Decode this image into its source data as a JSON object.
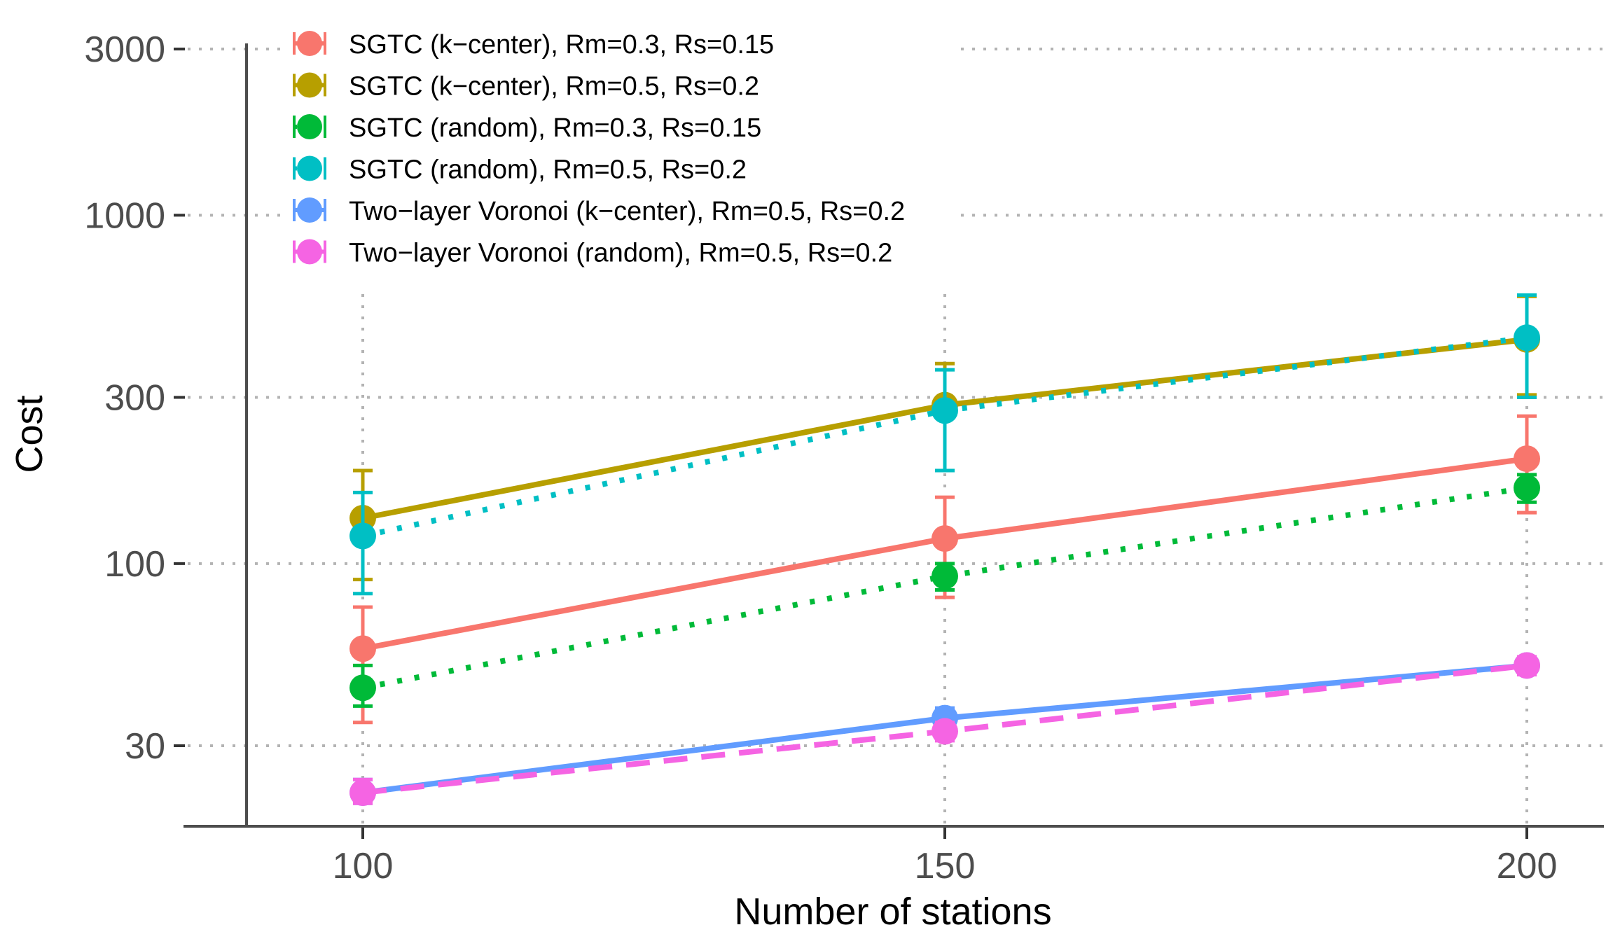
{
  "chart_data": {
    "type": "line",
    "title": "",
    "xlabel": "Number of stations",
    "ylabel": "Cost",
    "y_scale": "log10",
    "ylim": [
      20,
      3000
    ],
    "xlim": [
      85,
      206
    ],
    "x": [
      100,
      150,
      200
    ],
    "x_ticks": [
      100,
      150,
      200
    ],
    "x_tick_labels": [
      "100",
      "150",
      "200"
    ],
    "y_ticks": [
      30,
      100,
      300,
      1000,
      3000
    ],
    "y_tick_labels": [
      "30",
      "100",
      "300",
      "1000",
      "3000"
    ],
    "grid": true,
    "legend_position": "top-left",
    "series": [
      {
        "name": "SGTC (k−center), Rm=0.3, Rs=0.15",
        "color": "#F8766D",
        "dash": "solid",
        "values": [
          57,
          118,
          200
        ],
        "err_low": [
          35,
          80,
          140
        ],
        "err_high": [
          75,
          155,
          265
        ]
      },
      {
        "name": "SGTC (k−center), Rm=0.5, Rs=0.2",
        "color": "#B79F00",
        "dash": "solid",
        "values": [
          135,
          285,
          440
        ],
        "err_low": [
          90,
          185,
          305
        ],
        "err_high": [
          185,
          375,
          585
        ]
      },
      {
        "name": "SGTC (random), Rm=0.3, Rs=0.15",
        "color": "#00BA38",
        "dash": "dotted",
        "values": [
          44,
          92,
          165
        ],
        "err_low": [
          39,
          84,
          150
        ],
        "err_high": [
          51,
          100,
          180
        ]
      },
      {
        "name": "SGTC (random), Rm=0.5, Rs=0.2",
        "color": "#00BFC4",
        "dash": "dotted",
        "values": [
          120,
          275,
          445
        ],
        "err_low": [
          82,
          185,
          300
        ],
        "err_high": [
          160,
          360,
          590
        ]
      },
      {
        "name": "Two−layer Voronoi (k−center), Rm=0.5, Rs=0.2",
        "color": "#619CFF",
        "dash": "solid",
        "values": [
          22,
          36,
          51
        ],
        "err_low": [
          20.5,
          34,
          48
        ],
        "err_high": [
          24,
          38.5,
          54
        ]
      },
      {
        "name": "Two−layer Voronoi (random), Rm=0.5, Rs=0.2",
        "color": "#F564E3",
        "dash": "dashed",
        "values": [
          22,
          33,
          51
        ],
        "err_low": [
          20.5,
          31,
          48
        ],
        "err_high": [
          24,
          35,
          54
        ]
      }
    ]
  }
}
